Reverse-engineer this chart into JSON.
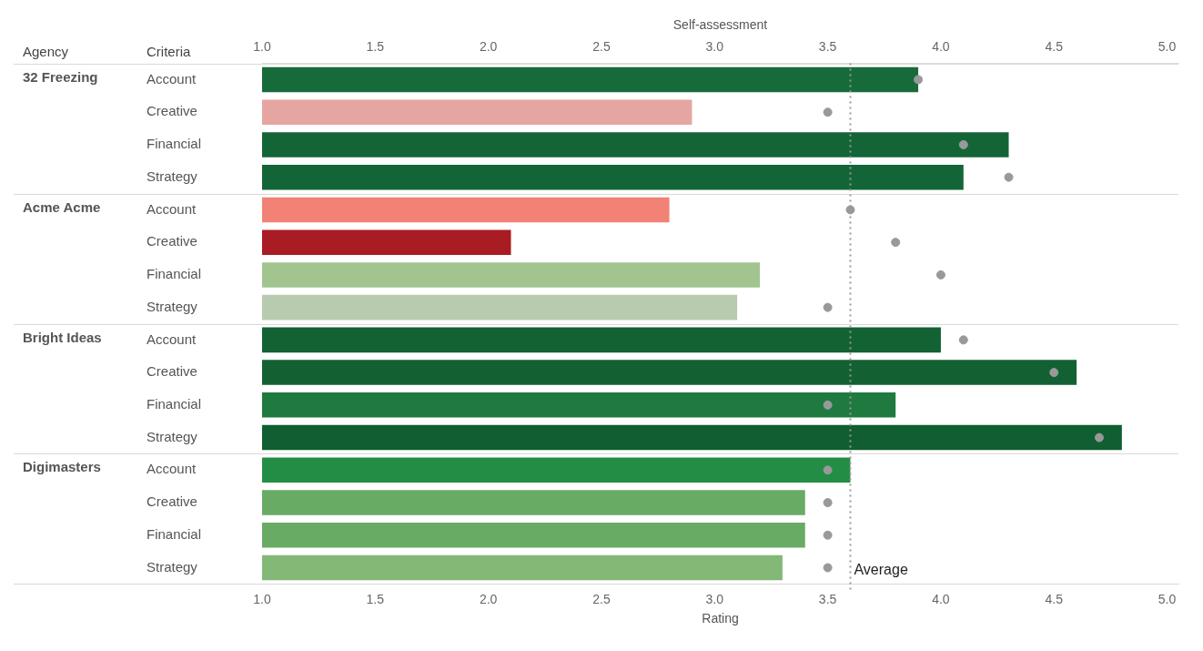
{
  "chart_data": {
    "type": "bar",
    "orientation": "horizontal",
    "xlabel": "Rating",
    "x2label": "Self-assessment",
    "categories": [
      "Account",
      "Creative",
      "Financial",
      "Strategy",
      "Account",
      "Creative",
      "Financial",
      "Strategy",
      "Account",
      "Creative",
      "Financial",
      "Strategy",
      "Account",
      "Creative",
      "Financial",
      "Strategy"
    ],
    "series": [
      {
        "colors": [
          "#176b3a",
          "#e5a6a1",
          "#136537",
          "#136537",
          "#f28275",
          "#a91c23",
          "#a2c48f",
          "#b8cbae",
          "#126234",
          "#136133",
          "#1f7a40",
          "#105e31",
          "#238d45",
          "#67ab64",
          "#67ab64",
          "#84b877"
        ],
        "values": [
          3.9,
          2.9,
          4.3,
          4.1,
          2.8,
          2.1,
          3.2,
          3.1,
          4.0,
          4.6,
          3.8,
          4.8,
          3.6,
          3.4,
          3.4,
          3.3
        ]
      },
      {
        "type": "scatter",
        "axis": "x2",
        "color": "#999999",
        "marker": "circle",
        "values": [
          3.9,
          3.5,
          4.1,
          4.3,
          3.6,
          3.8,
          4.0,
          3.5,
          4.1,
          4.5,
          3.5,
          4.7,
          3.5,
          3.5,
          3.5,
          3.5
        ]
      }
    ],
    "xlim": [
      1.0,
      5.05
    ],
    "xticks": [
      {
        "value": 1,
        "label": "1.0"
      },
      {
        "value": 1.5,
        "label": "1.5"
      },
      {
        "value": 2,
        "label": "2.0"
      },
      {
        "value": 2.5,
        "label": "2.5"
      },
      {
        "value": 3,
        "label": "3.0"
      },
      {
        "value": 3.5,
        "label": "3.5"
      },
      {
        "value": 4,
        "label": "4.0"
      },
      {
        "value": 4.5,
        "label": "4.5"
      },
      {
        "value": 5,
        "label": "5.0"
      }
    ],
    "x2lim": [
      1.0,
      5.05
    ],
    "x2ticks": [
      {
        "value": 1,
        "label": "1.0"
      },
      {
        "value": 1.5,
        "label": "1.5"
      },
      {
        "value": 2,
        "label": "2.0"
      },
      {
        "value": 2.5,
        "label": "2.5"
      },
      {
        "value": 3,
        "label": "3.0"
      },
      {
        "value": 3.5,
        "label": "3.5"
      },
      {
        "value": 4,
        "label": "4.0"
      },
      {
        "value": 4.5,
        "label": "4.5"
      },
      {
        "value": 5,
        "label": "5.0"
      }
    ],
    "ref_lines": [
      {
        "axis": "x",
        "value": 3.6,
        "label": "Average",
        "line_style": "dotted",
        "color": "#999999"
      }
    ],
    "annotations": [
      "Agency",
      "Criteria",
      "32 Freezing",
      "Acme Acme",
      "Bright Ideas",
      "Digimasters"
    ],
    "grid": false,
    "legend": false
  }
}
